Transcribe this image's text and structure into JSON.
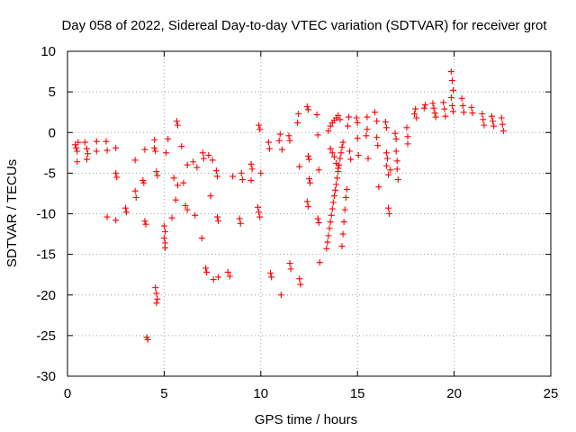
{
  "colors": {
    "series": "#ff0000",
    "grid": "#a0a0a0",
    "axis": "#000000"
  },
  "chart_data": {
    "type": "scatter",
    "title": "Day 058 of 2022, Sidereal Day-to-day VTEC variation (SDTVAR) for receiver grot",
    "xlabel": "GPS time / hours",
    "ylabel": "SDTVAR / TECUs",
    "xlim": [
      0,
      25
    ],
    "ylim": [
      -30,
      10
    ],
    "xticks": [
      0,
      5,
      10,
      15,
      20,
      25
    ],
    "yticks": [
      10,
      5,
      0,
      -5,
      -10,
      -15,
      -20,
      -25,
      -30
    ],
    "grid": true,
    "marker": "+",
    "series": [
      {
        "name": "SDTVAR",
        "points": [
          [
            0.4,
            -1.5
          ],
          [
            0.45,
            -1.9
          ],
          [
            0.5,
            -2.3
          ],
          [
            0.55,
            -1.2
          ],
          [
            0.5,
            -3.6
          ],
          [
            0.9,
            -1.2
          ],
          [
            1.0,
            -2.0
          ],
          [
            1.05,
            -2.6
          ],
          [
            1.0,
            -3.3
          ],
          [
            1.5,
            -1.1
          ],
          [
            1.5,
            -2.3
          ],
          [
            2.0,
            -1.1
          ],
          [
            2.05,
            -2.2
          ],
          [
            2.05,
            -10.4
          ],
          [
            2.5,
            -1.9
          ],
          [
            2.5,
            -5.0
          ],
          [
            2.55,
            -5.5
          ],
          [
            2.5,
            -10.8
          ],
          [
            3.0,
            -9.3
          ],
          [
            3.05,
            -9.8
          ],
          [
            3.5,
            -3.4
          ],
          [
            3.5,
            -7.2
          ],
          [
            3.55,
            -8.0
          ],
          [
            3.9,
            -5.9
          ],
          [
            3.95,
            -6.2
          ],
          [
            4.0,
            -2.1
          ],
          [
            4.0,
            -10.9
          ],
          [
            4.05,
            -11.3
          ],
          [
            4.1,
            -25.2
          ],
          [
            4.15,
            -25.5
          ],
          [
            4.5,
            -1.9
          ],
          [
            4.55,
            -2.3
          ],
          [
            4.5,
            -0.9
          ],
          [
            4.6,
            -4.8
          ],
          [
            4.65,
            -5.3
          ],
          [
            4.55,
            -19.1
          ],
          [
            4.6,
            -19.8
          ],
          [
            4.65,
            -20.5
          ],
          [
            4.6,
            -21.0
          ],
          [
            5.0,
            -11.5
          ],
          [
            5.05,
            -12.2
          ],
          [
            5.0,
            -13.0
          ],
          [
            5.05,
            -13.6
          ],
          [
            5.05,
            -14.2
          ],
          [
            5.1,
            -2.5
          ],
          [
            5.2,
            -0.8
          ],
          [
            5.4,
            -10.5
          ],
          [
            5.5,
            -5.6
          ],
          [
            5.6,
            -8.3
          ],
          [
            5.7,
            -6.5
          ],
          [
            5.65,
            1.4
          ],
          [
            5.7,
            0.9
          ],
          [
            5.9,
            -1.7
          ],
          [
            6.0,
            -6.2
          ],
          [
            6.1,
            -9.0
          ],
          [
            6.2,
            -9.5
          ],
          [
            6.2,
            -4.0
          ],
          [
            6.5,
            -3.6
          ],
          [
            6.6,
            -10.2
          ],
          [
            6.7,
            -4.3
          ],
          [
            6.95,
            -13.0
          ],
          [
            7.0,
            -2.5
          ],
          [
            7.05,
            -3.2
          ],
          [
            7.15,
            -16.7
          ],
          [
            7.2,
            -17.2
          ],
          [
            7.3,
            -2.8
          ],
          [
            7.4,
            -7.8
          ],
          [
            7.5,
            -3.4
          ],
          [
            7.55,
            -18.1
          ],
          [
            7.7,
            -4.7
          ],
          [
            7.75,
            -5.4
          ],
          [
            7.75,
            -10.4
          ],
          [
            7.8,
            -10.9
          ],
          [
            7.8,
            -17.8
          ],
          [
            8.3,
            -17.2
          ],
          [
            8.4,
            -17.7
          ],
          [
            8.55,
            -5.4
          ],
          [
            8.9,
            -10.6
          ],
          [
            8.95,
            -11.2
          ],
          [
            9.0,
            -5.0
          ],
          [
            9.05,
            -5.8
          ],
          [
            9.5,
            -3.9
          ],
          [
            9.55,
            -4.5
          ],
          [
            9.5,
            -5.9
          ],
          [
            9.9,
            0.9
          ],
          [
            9.95,
            0.4
          ],
          [
            9.85,
            -9.2
          ],
          [
            9.9,
            -9.8
          ],
          [
            9.95,
            -10.4
          ],
          [
            10.0,
            -5.0
          ],
          [
            10.4,
            -1.2
          ],
          [
            10.45,
            -2.0
          ],
          [
            10.5,
            -17.3
          ],
          [
            10.55,
            -17.8
          ],
          [
            10.95,
            -1.0
          ],
          [
            11.0,
            -0.2
          ],
          [
            11.05,
            -20.0
          ],
          [
            11.1,
            -2.1
          ],
          [
            11.45,
            -0.4
          ],
          [
            11.5,
            -1.0
          ],
          [
            11.5,
            -16.1
          ],
          [
            11.55,
            -16.8
          ],
          [
            11.9,
            1.2
          ],
          [
            11.95,
            2.3
          ],
          [
            12.0,
            -4.2
          ],
          [
            12.0,
            -18.0
          ],
          [
            12.05,
            -18.7
          ],
          [
            12.4,
            3.2
          ],
          [
            12.45,
            2.8
          ],
          [
            12.5,
            -5.7
          ],
          [
            12.55,
            -6.2
          ],
          [
            12.45,
            -2.9
          ],
          [
            12.5,
            -3.3
          ],
          [
            12.4,
            -8.5
          ],
          [
            12.45,
            -9.1
          ],
          [
            12.9,
            2.2
          ],
          [
            12.95,
            -0.3
          ],
          [
            12.95,
            -10.6
          ],
          [
            13.0,
            -11.1
          ],
          [
            13.0,
            -4.6
          ],
          [
            13.05,
            -16.0
          ],
          [
            13.4,
            -14.3
          ],
          [
            13.45,
            -13.5
          ],
          [
            13.5,
            -12.7
          ],
          [
            13.55,
            -11.8
          ],
          [
            13.6,
            -11.0
          ],
          [
            13.65,
            -10.2
          ],
          [
            13.7,
            -9.4
          ],
          [
            13.75,
            -8.6
          ],
          [
            13.8,
            -7.8
          ],
          [
            13.85,
            -7.1
          ],
          [
            13.9,
            -6.4
          ],
          [
            13.95,
            -5.6
          ],
          [
            14.0,
            -4.8
          ],
          [
            14.05,
            -4.0
          ],
          [
            14.1,
            -3.2
          ],
          [
            14.15,
            -2.5
          ],
          [
            14.2,
            -1.8
          ],
          [
            14.25,
            -1.2
          ],
          [
            13.5,
            0.2
          ],
          [
            13.6,
            0.8
          ],
          [
            13.7,
            1.2
          ],
          [
            13.8,
            1.5
          ],
          [
            13.9,
            1.8
          ],
          [
            14.0,
            2.1
          ],
          [
            14.1,
            1.6
          ],
          [
            13.6,
            -2.0
          ],
          [
            13.7,
            -2.5
          ],
          [
            13.8,
            -3.0
          ],
          [
            13.9,
            -3.8
          ],
          [
            14.0,
            -4.4
          ],
          [
            14.2,
            -14.0
          ],
          [
            14.25,
            -12.5
          ],
          [
            14.3,
            -11.0
          ],
          [
            14.35,
            -9.5
          ],
          [
            14.4,
            -8.0
          ],
          [
            14.45,
            -7.0
          ],
          [
            14.5,
            0.8
          ],
          [
            14.55,
            1.9
          ],
          [
            14.6,
            -2.3
          ],
          [
            14.65,
            -3.3
          ],
          [
            14.95,
            1.8
          ],
          [
            15.0,
            1.2
          ],
          [
            15.0,
            -0.7
          ],
          [
            15.05,
            -2.8
          ],
          [
            15.45,
            -0.4
          ],
          [
            15.5,
            0.4
          ],
          [
            15.5,
            1.9
          ],
          [
            15.55,
            -3.2
          ],
          [
            15.9,
            2.5
          ],
          [
            16.0,
            1.4
          ],
          [
            16.0,
            -0.6
          ],
          [
            16.05,
            -1.6
          ],
          [
            16.1,
            -6.7
          ],
          [
            16.45,
            1.3
          ],
          [
            16.5,
            0.6
          ],
          [
            16.5,
            -2.5
          ],
          [
            16.55,
            -3.2
          ],
          [
            16.5,
            -4.1
          ],
          [
            16.6,
            -5.2
          ],
          [
            16.6,
            -9.3
          ],
          [
            16.65,
            -10.0
          ],
          [
            16.7,
            -4.6
          ],
          [
            16.95,
            -0.1
          ],
          [
            17.0,
            -0.8
          ],
          [
            17.0,
            -2.3
          ],
          [
            17.05,
            -3.5
          ],
          [
            17.05,
            -4.5
          ],
          [
            17.1,
            -5.8
          ],
          [
            17.55,
            0.6
          ],
          [
            17.6,
            -0.5
          ],
          [
            17.6,
            -1.4
          ],
          [
            17.95,
            2.3
          ],
          [
            18.0,
            2.9
          ],
          [
            18.05,
            1.8
          ],
          [
            18.45,
            3.0
          ],
          [
            18.5,
            3.4
          ],
          [
            18.9,
            3.6
          ],
          [
            18.95,
            3.0
          ],
          [
            19.0,
            2.4
          ],
          [
            19.05,
            1.9
          ],
          [
            19.45,
            3.7
          ],
          [
            19.5,
            2.9
          ],
          [
            19.55,
            2.0
          ],
          [
            19.85,
            7.5
          ],
          [
            19.9,
            6.4
          ],
          [
            19.95,
            5.2
          ],
          [
            19.85,
            4.3
          ],
          [
            19.9,
            3.3
          ],
          [
            19.95,
            2.6
          ],
          [
            20.4,
            4.2
          ],
          [
            20.45,
            3.3
          ],
          [
            20.5,
            2.5
          ],
          [
            20.9,
            3.1
          ],
          [
            20.95,
            2.4
          ],
          [
            21.45,
            2.3
          ],
          [
            21.5,
            1.6
          ],
          [
            21.55,
            0.9
          ],
          [
            21.95,
            2.0
          ],
          [
            22.0,
            1.4
          ],
          [
            22.05,
            0.8
          ],
          [
            22.45,
            1.8
          ],
          [
            22.5,
            1.0
          ],
          [
            22.55,
            0.2
          ]
        ]
      }
    ]
  }
}
